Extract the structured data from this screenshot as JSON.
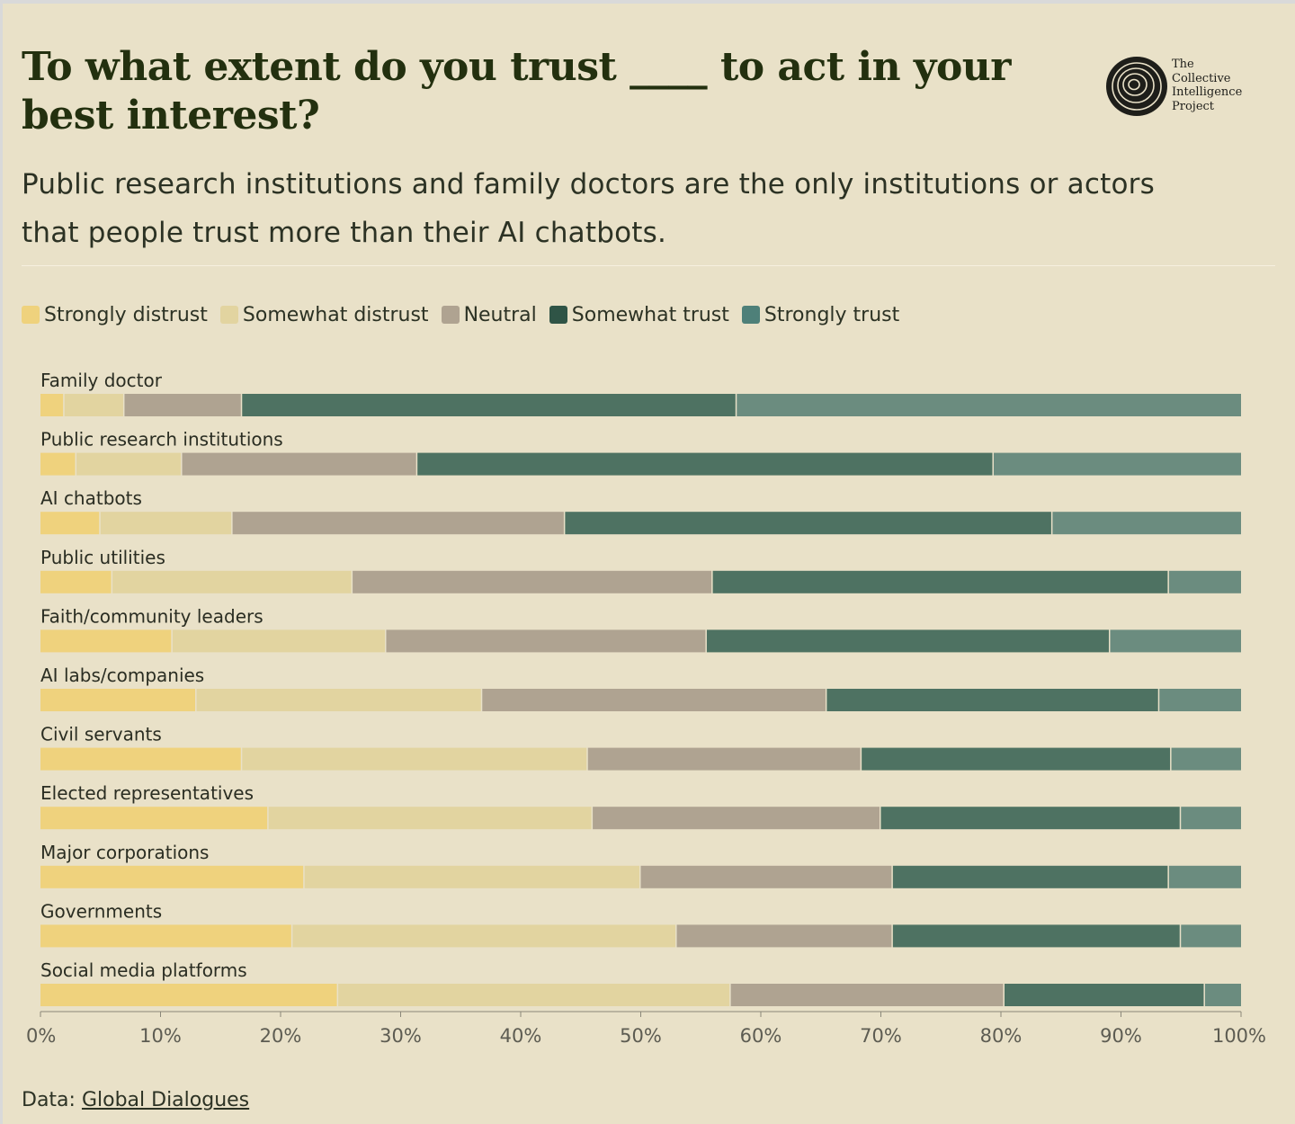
{
  "header": {
    "title": "To what extent do you trust ____ to act in your best interest?",
    "subtitle": "Public research institutions and family doctors are the only institutions or actors that people trust more than their AI chatbots."
  },
  "logo": {
    "line1": "The",
    "line2": "Collective",
    "line3": "Intelligence",
    "line4": "Project",
    "icon": "concentric-rings-icon"
  },
  "footer": {
    "source_prefix": "Data:",
    "source_link": "Global Dialogues"
  },
  "colors": {
    "strongly_distrust": "#efd27d",
    "somewhat_distrust": "#e2d4a0",
    "neutral": "#afa391",
    "somewhat_trust": "#4e7262",
    "strongly_trust": "#6b8c7f",
    "legend_somewhat_trust": "#2f5446",
    "legend_strongly_trust": "#4e8079"
  },
  "chart_data": {
    "type": "bar",
    "orientation": "horizontal-stacked-100",
    "title": "To what extent do you trust ____ to act in your best interest?",
    "xlabel": "",
    "ylabel": "",
    "xlim": [
      0,
      100
    ],
    "ticks": [
      "0%",
      "10%",
      "20%",
      "30%",
      "40%",
      "50%",
      "60%",
      "70%",
      "80%",
      "90%",
      "100%"
    ],
    "legend_position": "top-left",
    "categories": [
      "Family doctor",
      "Public research institutions",
      "AI chatbots",
      "Public utilities",
      "Faith/community leaders",
      "AI labs/companies",
      "Civil servants",
      "Elected representatives",
      "Major corporations",
      "Governments",
      "Social media platforms"
    ],
    "series": [
      {
        "name": "Strongly distrust",
        "color": "#efd27d",
        "values": [
          2,
          3,
          5,
          6,
          11,
          13,
          16.8,
          19,
          22,
          21,
          24.8
        ]
      },
      {
        "name": "Somewhat distrust",
        "color": "#e2d4a0",
        "values": [
          5,
          8.8,
          11,
          20,
          17.8,
          23.8,
          28.8,
          27,
          28,
          32,
          32.7
        ]
      },
      {
        "name": "Neutral",
        "color": "#afa391",
        "values": [
          9.8,
          19.6,
          27.7,
          30,
          26.7,
          28.7,
          22.8,
          24,
          21,
          18,
          22.8
        ]
      },
      {
        "name": "Somewhat trust",
        "color": "#4e7262",
        "values": [
          41.2,
          48,
          40.6,
          38,
          33.6,
          27.7,
          25.8,
          25,
          23,
          24,
          16.7
        ]
      },
      {
        "name": "Strongly trust",
        "color": "#6b8c7f",
        "values": [
          42,
          20.6,
          15.7,
          6,
          10.9,
          6.8,
          5.8,
          5,
          6,
          5,
          3
        ]
      }
    ]
  }
}
